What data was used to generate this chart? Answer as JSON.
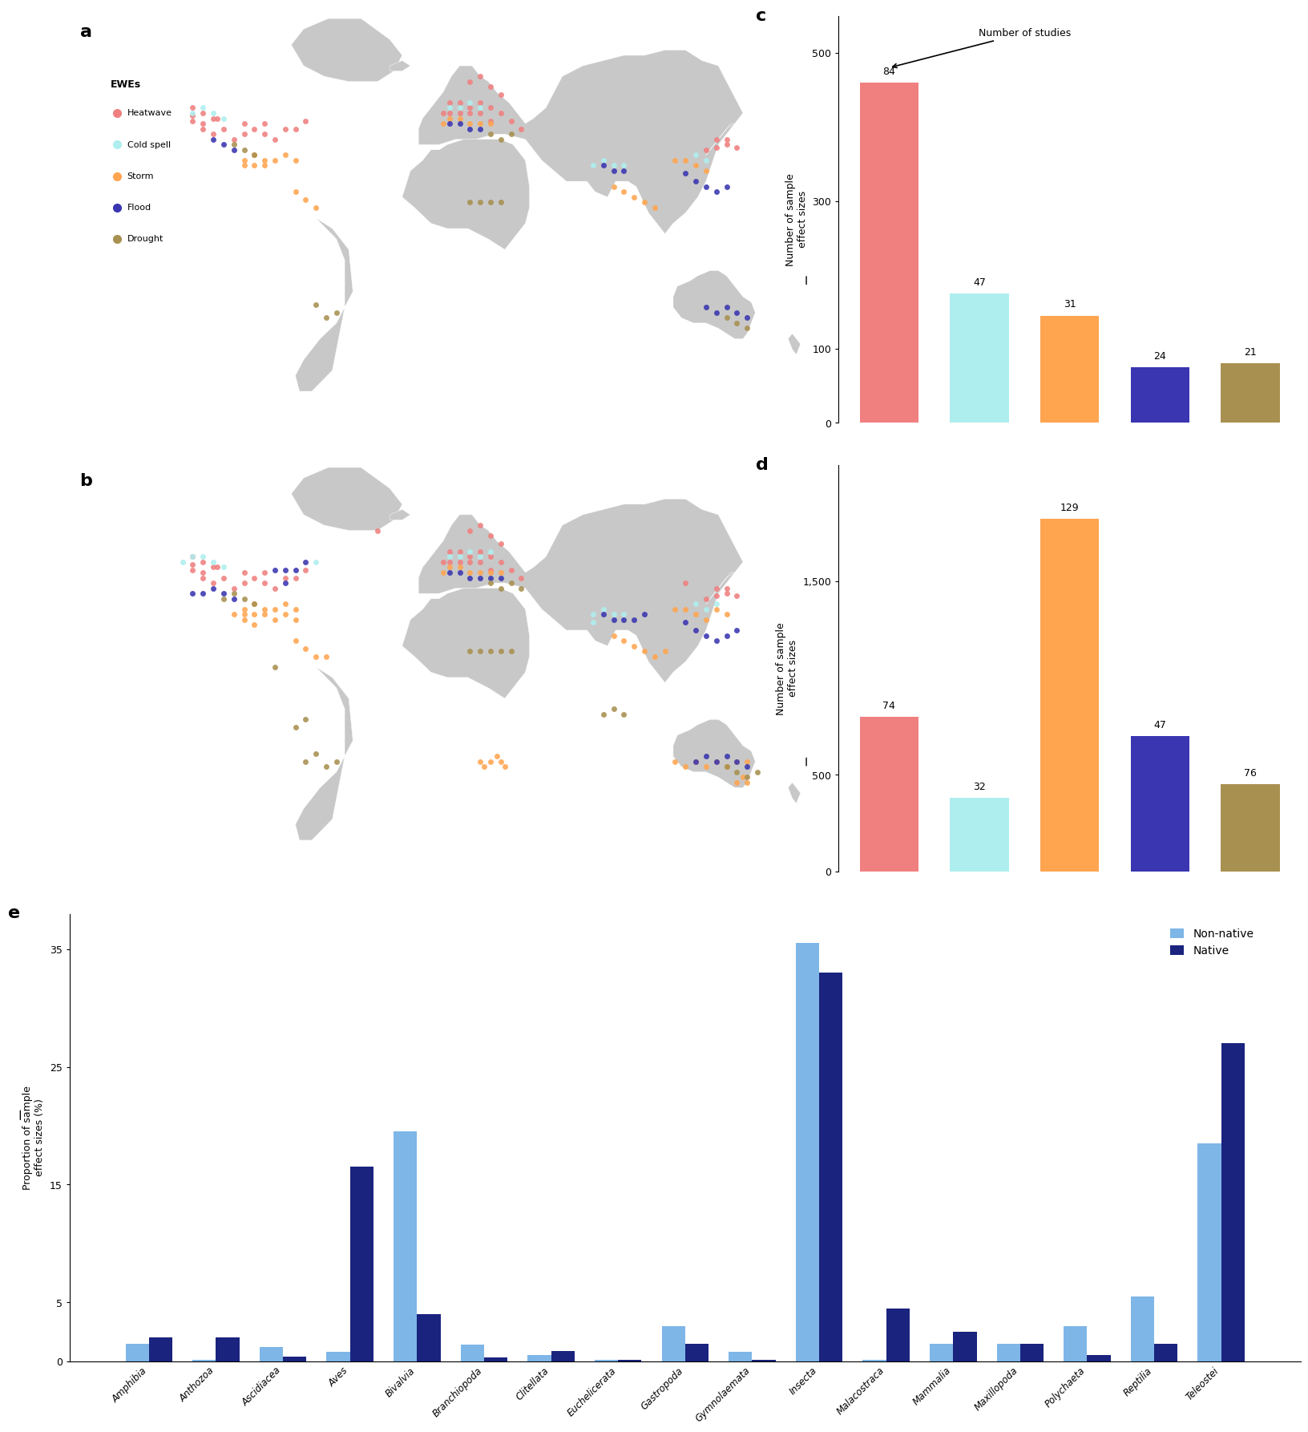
{
  "panel_c": {
    "categories": [
      "Heatwave",
      "Cold spell",
      "Storm",
      "Flood",
      "Drought"
    ],
    "values": [
      460,
      175,
      145,
      75,
      80
    ],
    "studies": [
      84,
      47,
      31,
      24,
      21
    ],
    "colors": [
      "#F08080",
      "#AFEEEE",
      "#FFA550",
      "#3A35B0",
      "#A89050"
    ],
    "ylabel": "Number of sample\neffect sizes",
    "ylim": [
      0,
      550
    ],
    "yticks": [
      0,
      100,
      300,
      500
    ]
  },
  "panel_d": {
    "categories": [
      "Heatwave",
      "Cold spell",
      "Storm",
      "Flood",
      "Drought"
    ],
    "values": [
      800,
      380,
      1820,
      700,
      450
    ],
    "studies": [
      74,
      32,
      129,
      47,
      76
    ],
    "colors": [
      "#F08080",
      "#AFEEEE",
      "#FFA550",
      "#3A35B0",
      "#A89050"
    ],
    "ylabel": "Number of sample\neffect sizes",
    "ylim": [
      0,
      2100
    ],
    "yticks": [
      0,
      500,
      1500
    ]
  },
  "panel_e": {
    "categories": [
      "Amphibia",
      "Anthozoa",
      "Ascidiacea",
      "Aves",
      "Bivalvia",
      "Branchiopoda",
      "Clitellata",
      "Euchelicerata",
      "Gastropoda",
      "Gymnolaemata",
      "Insecta",
      "Malacostraca",
      "Mammalia",
      "Maxillopoda",
      "Polychaeta",
      "Reptilia",
      "Teleostei"
    ],
    "non_native": [
      1.5,
      0.1,
      1.2,
      0.8,
      19.5,
      1.4,
      0.5,
      0.1,
      3.0,
      0.8,
      35.5,
      0.1,
      1.5,
      1.5,
      3.0,
      5.5,
      18.5
    ],
    "native": [
      2.0,
      2.0,
      0.4,
      16.5,
      4.0,
      0.3,
      0.9,
      0.1,
      1.5,
      0.1,
      33.0,
      4.5,
      2.5,
      1.5,
      0.5,
      1.5,
      27.0
    ],
    "ylabel": "Proportion of sample\neffect sizes (%)",
    "ylim": [
      0,
      38
    ],
    "yticks": [
      0,
      5,
      15,
      25,
      35
    ],
    "non_native_color": "#7EB6E8",
    "native_color": "#1A237E"
  },
  "ewe_legend": {
    "labels": [
      "Heatwave",
      "Cold spell",
      "Storm",
      "Flood",
      "Drought"
    ],
    "colors": [
      "#F08080",
      "#AFEEEE",
      "#FFA550",
      "#3A35B0",
      "#A89050"
    ]
  }
}
